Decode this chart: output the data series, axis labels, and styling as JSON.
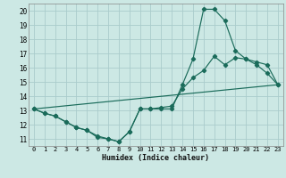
{
  "xlabel": "Humidex (Indice chaleur)",
  "bg_color": "#cce8e4",
  "grid_color": "#aacccc",
  "line_color": "#1a6b5a",
  "xlim": [
    -0.5,
    23.5
  ],
  "ylim": [
    10.5,
    20.5
  ],
  "xticks": [
    0,
    1,
    2,
    3,
    4,
    5,
    6,
    7,
    8,
    9,
    10,
    11,
    12,
    13,
    14,
    15,
    16,
    17,
    18,
    19,
    20,
    21,
    22,
    23
  ],
  "yticks": [
    11,
    12,
    13,
    14,
    15,
    16,
    17,
    18,
    19,
    20
  ],
  "line1_x": [
    0,
    1,
    2,
    3,
    4,
    5,
    6,
    7,
    8,
    9,
    10,
    11,
    12,
    13,
    14,
    15,
    16,
    17,
    18,
    19,
    20,
    21,
    22,
    23
  ],
  "line1_y": [
    13.1,
    12.8,
    12.6,
    12.2,
    11.8,
    11.6,
    11.1,
    11.0,
    10.8,
    11.5,
    13.1,
    13.1,
    13.1,
    13.1,
    14.8,
    16.6,
    20.1,
    20.1,
    19.3,
    17.2,
    16.6,
    16.2,
    15.6,
    14.8
  ],
  "line2_x": [
    0,
    1,
    2,
    3,
    4,
    5,
    6,
    7,
    8,
    9,
    10,
    11,
    12,
    13,
    14,
    15,
    16,
    17,
    18,
    19,
    20,
    21,
    22,
    23
  ],
  "line2_y": [
    13.1,
    12.8,
    12.6,
    12.2,
    11.8,
    11.6,
    11.2,
    11.0,
    10.8,
    11.5,
    13.1,
    13.1,
    13.2,
    13.3,
    14.5,
    15.3,
    15.8,
    16.8,
    16.2,
    16.7,
    16.6,
    16.4,
    16.2,
    14.8
  ],
  "line3_x": [
    0,
    23
  ],
  "line3_y": [
    13.1,
    14.8
  ]
}
